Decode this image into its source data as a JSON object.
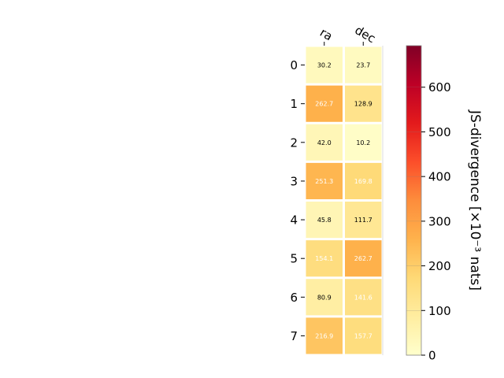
{
  "chart_data": {
    "type": "heatmap",
    "columns": [
      "ra",
      "dec"
    ],
    "rows": [
      "0",
      "1",
      "2",
      "3",
      "4",
      "5",
      "6",
      "7"
    ],
    "values": [
      [
        30.2,
        23.7
      ],
      [
        262.7,
        128.9
      ],
      [
        42.0,
        10.2
      ],
      [
        251.3,
        169.8
      ],
      [
        45.8,
        111.7
      ],
      [
        154.1,
        262.7
      ],
      [
        80.9,
        141.6
      ],
      [
        216.9,
        157.7
      ]
    ],
    "value_labels": [
      [
        "30.2",
        "23.7"
      ],
      [
        "262.7",
        "128.9"
      ],
      [
        "42.0",
        "10.2"
      ],
      [
        "251.3",
        "169.8"
      ],
      [
        "45.8",
        "111.7"
      ],
      [
        "154.1",
        "262.7"
      ],
      [
        "80.9",
        "141.6"
      ],
      [
        "216.9",
        "157.7"
      ]
    ],
    "colorbar": {
      "label": "JS-divergence [×10⁻³ nats]",
      "range": [
        0,
        693
      ],
      "ticks": [
        0,
        100,
        200,
        300,
        400,
        500,
        600
      ],
      "colormap": "YlOrRd",
      "colormap_stops": [
        "#ffffcc",
        "#ffeda0",
        "#fed976",
        "#feb24c",
        "#fd8d3c",
        "#fc4e2a",
        "#e31a1c",
        "#bd0026",
        "#800026"
      ]
    },
    "grid": false
  }
}
